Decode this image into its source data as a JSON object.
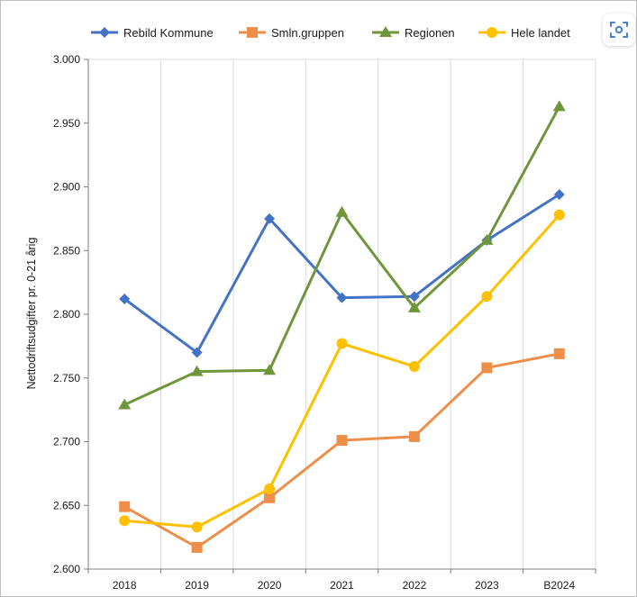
{
  "chart_data": {
    "type": "line",
    "title": "",
    "xlabel": "",
    "ylabel": "Nettodriftsudgifter pr. 0-21 årig",
    "categories": [
      "2018",
      "2019",
      "2020",
      "2021",
      "2022",
      "2023",
      "B2024"
    ],
    "y_ticks": [
      "2.600",
      "2.650",
      "2.700",
      "2.750",
      "2.800",
      "2.850",
      "2.900",
      "2.950",
      "3.000"
    ],
    "ylim": [
      2600,
      3000
    ],
    "y_tick_step": 50,
    "grid": "vertical",
    "legend_position": "top",
    "series": [
      {
        "name": "Rebild Kommune",
        "marker": "diamond",
        "color": "#4472c4",
        "values": [
          2812,
          2770,
          2875,
          2813,
          2814,
          2858,
          2894
        ]
      },
      {
        "name": "Smln.gruppen",
        "marker": "square",
        "color": "#ed8f49",
        "values": [
          2649,
          2617,
          2656,
          2701,
          2704,
          2758,
          2769
        ]
      },
      {
        "name": "Regionen",
        "marker": "triangle",
        "color": "#70963c",
        "values": [
          2729,
          2755,
          2756,
          2880,
          2805,
          2858,
          2963
        ]
      },
      {
        "name": "Hele landet",
        "marker": "circle",
        "color": "#ffc000",
        "values": [
          2638,
          2633,
          2663,
          2777,
          2759,
          2814,
          2878
        ]
      }
    ]
  },
  "toolbar": {
    "lens_icon": "lens-search-icon"
  }
}
